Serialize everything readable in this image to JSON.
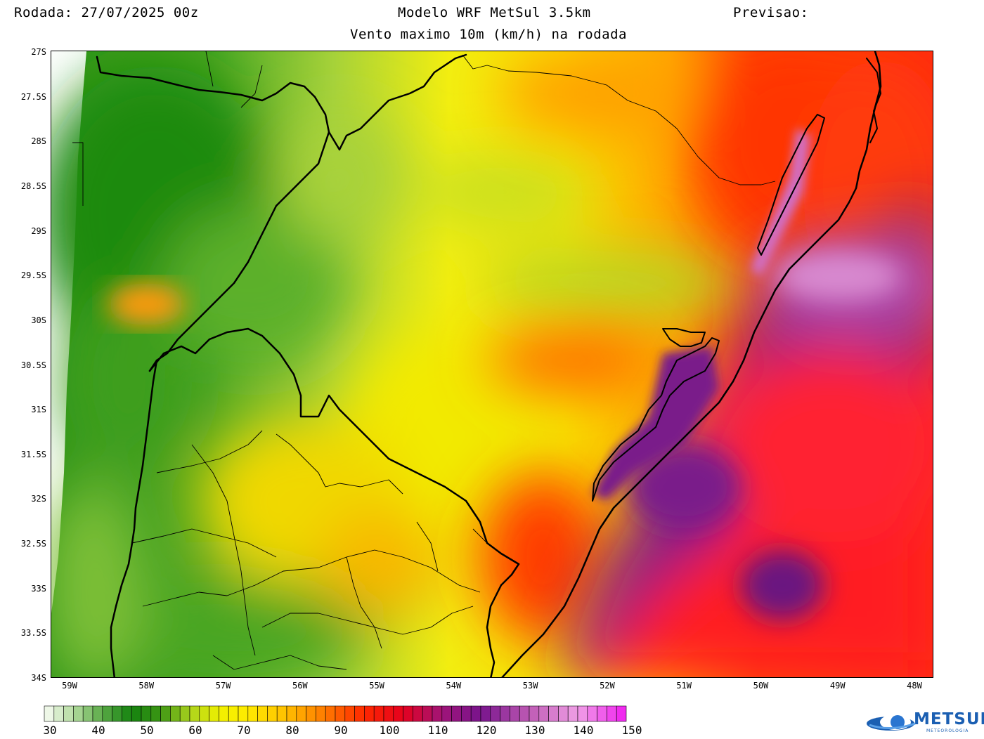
{
  "header": {
    "run_label": "Rodada: 27/07/2025 00z",
    "model_title": "Modelo WRF MetSul 3.5km",
    "forecast_label": "Previsao:",
    "subtitle": "Vento maximo 10m (km/h) na rodada"
  },
  "axes": {
    "lat_labels": [
      "27S",
      "27.5S",
      "28S",
      "28.5S",
      "29S",
      "29.5S",
      "30S",
      "30.5S",
      "31S",
      "31.5S",
      "32S",
      "32.5S",
      "33S",
      "33.5S",
      "34S"
    ],
    "lon_labels": [
      "59W",
      "58W",
      "57W",
      "56W",
      "55W",
      "54W",
      "53W",
      "52W",
      "51W",
      "50W",
      "49W",
      "48W"
    ]
  },
  "colorbar": {
    "labels": [
      "30",
      "40",
      "50",
      "60",
      "70",
      "80",
      "90",
      "100",
      "110",
      "120",
      "130",
      "140",
      "150"
    ],
    "range": [
      30,
      150
    ],
    "step": 2
  },
  "logo": {
    "name": "METSUL",
    "tagline": "METEOROLOGIA"
  },
  "colors": {
    "green_dark": "#1f8a0f",
    "green_light": "#8cc63f",
    "yellow": "#f5f000",
    "orange": "#ffa000",
    "red": "#ff2000",
    "purple": "#7a1a8a",
    "pink": "#f0a0e0"
  }
}
